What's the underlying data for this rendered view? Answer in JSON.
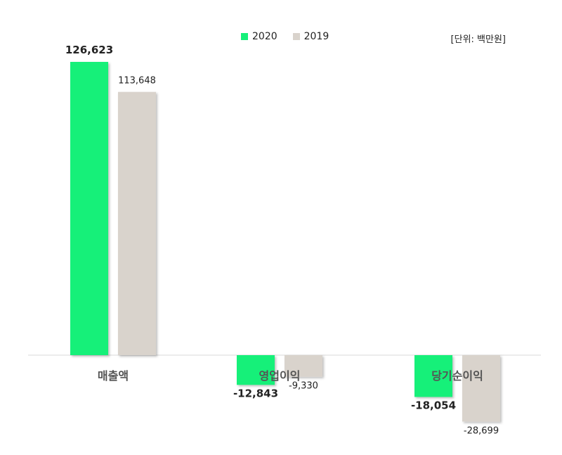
{
  "unit_label": "[단위: 백만원]",
  "colors": {
    "2020": "#15f079",
    "2019": "#d9d3cc"
  },
  "chart_data": {
    "type": "bar",
    "categories": [
      "매출액",
      "영업이익",
      "당기순이익"
    ],
    "series": [
      {
        "name": "2020",
        "values": [
          126623,
          -12843,
          -18054
        ],
        "labels": [
          "126,623",
          "-12,843",
          "-18,054"
        ]
      },
      {
        "name": "2019",
        "values": [
          113648,
          -9330,
          -28699
        ],
        "labels": [
          "113,648",
          "-9,330",
          "-28,699"
        ]
      }
    ],
    "legend_position": "top",
    "grid": false
  }
}
